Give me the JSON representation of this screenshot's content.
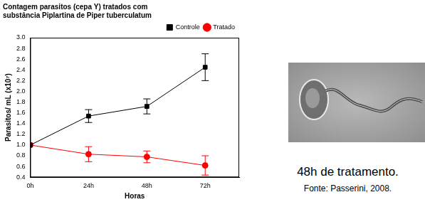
{
  "chart_data": {
    "type": "line",
    "title": [
      "Contagem parasitos (cepa Y) tratados com",
      "substância Piplartina de Piper tuberculatum"
    ],
    "x_label": "Horas",
    "y_label": "Parasitos/ mL (x10⁷)",
    "x": [
      0,
      24,
      48,
      72
    ],
    "xlim": [
      0,
      86
    ],
    "xticks": [
      {
        "value": 0,
        "label": "0h"
      },
      {
        "value": 24,
        "label": "24h"
      },
      {
        "value": 48,
        "label": "48h"
      },
      {
        "value": 72,
        "label": "72h"
      }
    ],
    "ylim": [
      0.4,
      3.0
    ],
    "yticks": [
      0.4,
      0.6,
      0.8,
      {
        "value": 1,
        "label": "1.0"
      },
      1.2,
      1.4,
      1.6,
      1.8,
      {
        "value": 2,
        "label": "2.0"
      },
      2.2,
      2.4,
      2.6,
      2.8,
      {
        "value": 3,
        "label": "3.0"
      }
    ],
    "grid": false,
    "legend": "upper right",
    "series": [
      {
        "name": "Controle",
        "color": "#000000",
        "marker": "square",
        "line_style": "solid",
        "values": [
          1.0,
          1.54,
          1.72,
          2.45
        ],
        "errors": [
          0,
          0.12,
          0.14,
          0.25
        ]
      },
      {
        "name": "Tratado",
        "color": "#ff0000",
        "marker": "circle",
        "line_style": "solid",
        "values": [
          1.0,
          0.83,
          0.78,
          0.62
        ],
        "errors": [
          0,
          0.14,
          0.11,
          0.18
        ]
      }
    ]
  },
  "image": {
    "caption": "48h de tratamento.",
    "source": "Fonte: Passerini, 2008."
  }
}
